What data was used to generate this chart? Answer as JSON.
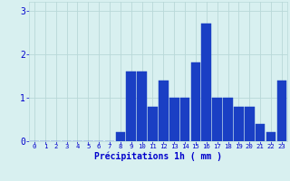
{
  "hours": [
    0,
    1,
    2,
    3,
    4,
    5,
    6,
    7,
    8,
    9,
    10,
    11,
    12,
    13,
    14,
    15,
    16,
    17,
    18,
    19,
    20,
    21,
    22,
    23
  ],
  "values": [
    0.0,
    0.0,
    0.0,
    0.0,
    0.0,
    0.0,
    0.0,
    0.0,
    0.2,
    1.6,
    1.6,
    0.8,
    1.4,
    1.0,
    1.0,
    1.8,
    2.7,
    1.0,
    1.0,
    0.8,
    0.8,
    0.4,
    0.2,
    1.4
  ],
  "bar_color": "#1a3fc4",
  "bar_edge_color": "#1a3fc4",
  "background_color": "#d8f0f0",
  "grid_color": "#b8d8d8",
  "xlabel": "Précipitations 1h ( mm )",
  "xlabel_color": "#0000cc",
  "tick_color": "#0000cc",
  "ylim": [
    0,
    3.2
  ],
  "yticks": [
    0,
    1,
    2,
    3
  ],
  "xlim": [
    -0.5,
    23.5
  ]
}
